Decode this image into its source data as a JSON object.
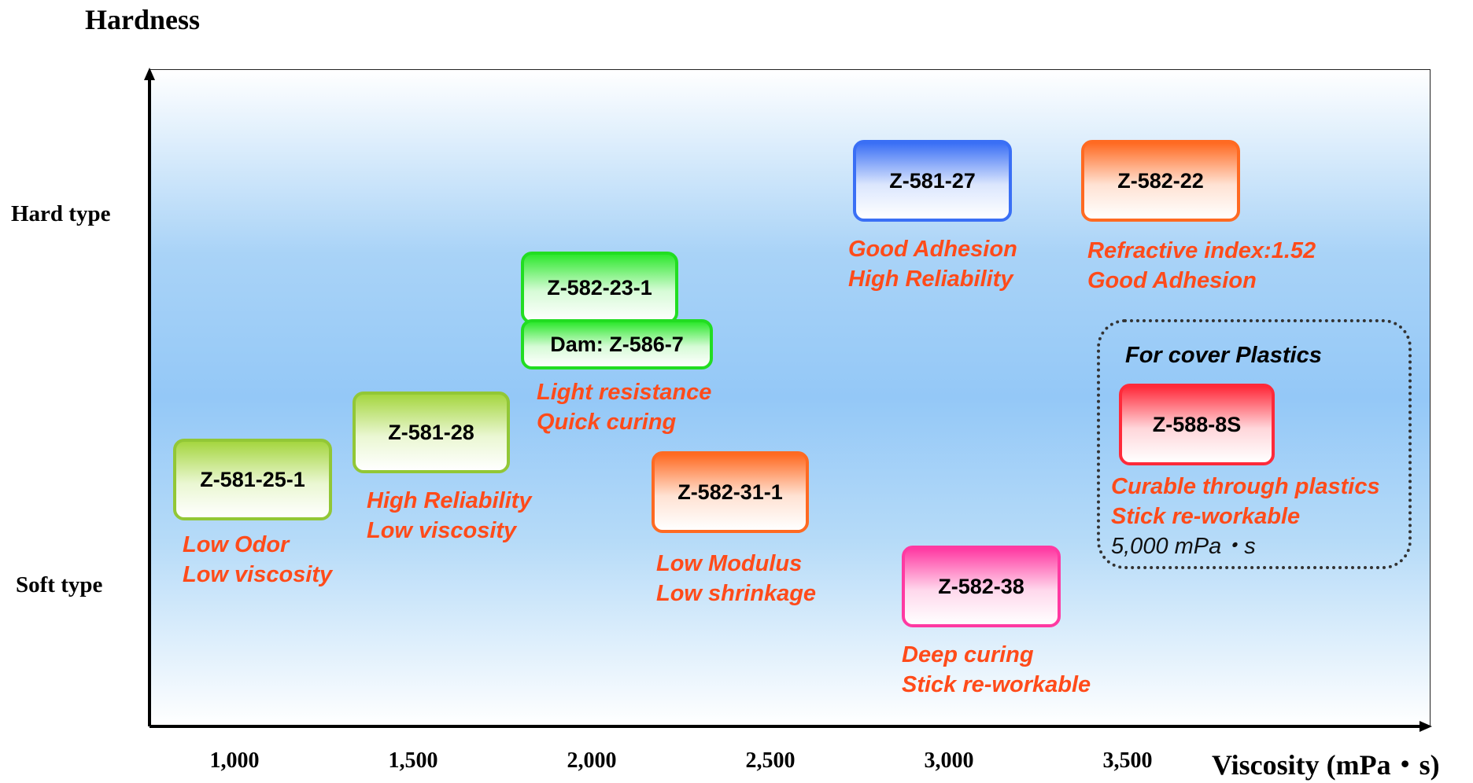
{
  "axis": {
    "y_title": "Hardness",
    "y_high_label": "Hard type",
    "y_low_label": "Soft type",
    "x_title": "Viscosity (mPa・s)",
    "x_ticks": [
      "1,000",
      "1,500",
      "2,000",
      "2,500",
      "3,000",
      "3,500"
    ]
  },
  "products": [
    {
      "name": "Z-581-25-1",
      "color": "#92c736",
      "features": [
        "Low Odor",
        "Low viscosity"
      ]
    },
    {
      "name": "Z-581-28",
      "color": "#92c736",
      "features": [
        "High Reliability",
        "Low viscosity"
      ]
    },
    {
      "name": "Z-582-23-1",
      "color": "#22dd22",
      "features": []
    },
    {
      "name": "Dam: Z-586-7",
      "color": "#22dd22",
      "features": [
        "Light resistance",
        "Quick curing"
      ]
    },
    {
      "name": "Z-582-31-1",
      "color": "#ff6a22",
      "features": [
        "Low Modulus",
        "Low shrinkage"
      ]
    },
    {
      "name": "Z-581-27",
      "color": "#3a6ff5",
      "features": [
        "Good Adhesion",
        "High Reliability"
      ]
    },
    {
      "name": "Z-582-38",
      "color": "#ff3aa2",
      "features": [
        "Deep curing",
        "Stick re-workable"
      ]
    },
    {
      "name": "Z-582-22",
      "color": "#ff6a22",
      "features": [
        "Refractive index:1.52",
        "Good Adhesion"
      ]
    },
    {
      "name": "Z-588-8S",
      "color": "#ff2a3a",
      "features": [
        "Curable through plastics",
        "Stick re-workable",
        "5,000 mPa・s"
      ]
    }
  ],
  "cover_group": {
    "title": "For cover Plastics"
  }
}
